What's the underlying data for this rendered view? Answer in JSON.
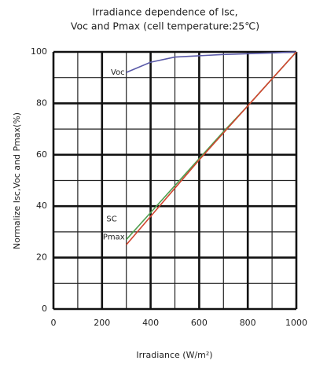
{
  "chart_data": {
    "type": "line",
    "title": [
      "Irradiance dependence of Isc,",
      "Voc and Pmax (cell temperature:25℃)"
    ],
    "x_label": "Irradiance (W/m²)",
    "y_label": "Normalize Isc,Voc and Pmax(%)",
    "x": [
      300,
      400,
      500,
      600,
      700,
      800,
      900,
      1000
    ],
    "series": [
      {
        "label": "Voc",
        "color": "#5a5aa8",
        "values": [
          92,
          96,
          98,
          98.5,
          99,
          99.3,
          99.6,
          100
        ]
      },
      {
        "label": "SC",
        "color": "#4f9e4f",
        "values": [
          27,
          37.5,
          48,
          58.5,
          69,
          79,
          89.5,
          100
        ]
      },
      {
        "label": "Pmax",
        "color": "#d0452f",
        "values": [
          25,
          36,
          47,
          58,
          68.5,
          79,
          89.5,
          100
        ]
      }
    ],
    "xlim": [
      0,
      1000
    ],
    "ylim": [
      0,
      100
    ],
    "xticks": [
      0,
      200,
      400,
      600,
      800,
      1000
    ],
    "yticks": [
      0,
      20,
      40,
      60,
      80,
      100
    ],
    "x_minor_grid": [
      100,
      300,
      500,
      700,
      900
    ],
    "y_minor_grid": [
      10,
      30,
      50,
      70,
      90
    ],
    "grid": true
  }
}
